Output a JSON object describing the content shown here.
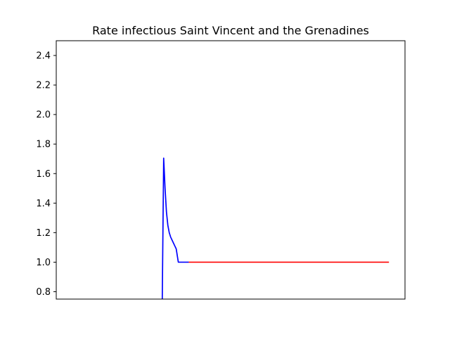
{
  "chart_data": {
    "type": "line",
    "title": "Rate infectious Saint Vincent and the Grenadines",
    "xlabel": "",
    "ylabel": "",
    "xlim": [
      0,
      100
    ],
    "ylim": [
      0.75,
      2.5
    ],
    "yticks": [
      0.8,
      1.0,
      1.2,
      1.4,
      1.6,
      1.8,
      2.0,
      2.2,
      2.4
    ],
    "ytick_labels": [
      "0.8",
      "1.0",
      "1.2",
      "1.4",
      "1.6",
      "1.8",
      "2.0",
      "2.2",
      "2.4"
    ],
    "x_ticks_visible": false,
    "grid": false,
    "series": [
      {
        "color": "#0000ff",
        "x": [
          30.4,
          30.8,
          31.2,
          31.6,
          32.0,
          32.4,
          32.8,
          33.2,
          33.6,
          34.0,
          34.4,
          35.0,
          36.5,
          38.0
        ],
        "y": [
          0.75,
          1.705,
          1.5,
          1.34,
          1.25,
          1.2,
          1.17,
          1.15,
          1.13,
          1.11,
          1.09,
          1.0,
          1.0,
          1.0
        ]
      },
      {
        "color": "#ff0000",
        "x": [
          38.0,
          95.4
        ],
        "y": [
          1.0,
          1.0
        ]
      }
    ]
  }
}
